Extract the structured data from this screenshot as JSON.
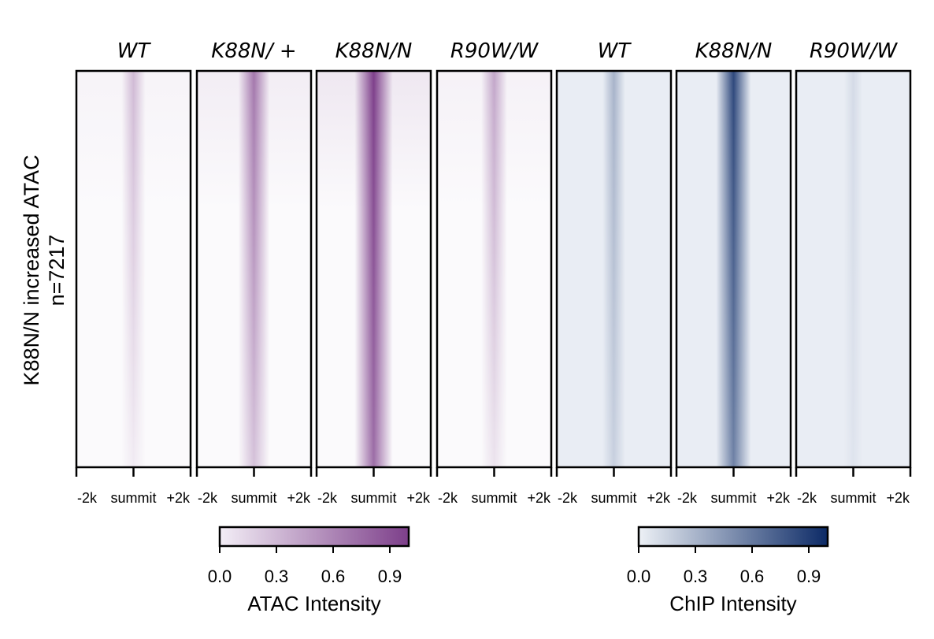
{
  "chart_data": {
    "type": "heatmap",
    "ylabel_line1": "K88N/N increased ATAC",
    "ylabel_line2": "n=7217",
    "n_regions": 7217,
    "x_tick_labels": [
      "-2k",
      "summit",
      "+2k"
    ],
    "panels": [
      {
        "title": "WT",
        "assay": "ATAC",
        "intensity_top": 0.35,
        "intensity_bottom": 0.08
      },
      {
        "title": "K88N/ +",
        "assay": "ATAC",
        "intensity_top": 0.7,
        "intensity_bottom": 0.3
      },
      {
        "title": "K88N/N",
        "assay": "ATAC",
        "intensity_top": 1.0,
        "intensity_bottom": 0.75
      },
      {
        "title": "R90W/W",
        "assay": "ATAC",
        "intensity_top": 0.45,
        "intensity_bottom": 0.12
      },
      {
        "title": "WT",
        "assay": "ChIP",
        "intensity_top": 0.3,
        "intensity_bottom": 0.15
      },
      {
        "title": "K88N/N",
        "assay": "ChIP",
        "intensity_top": 0.85,
        "intensity_bottom": 0.55
      },
      {
        "title": "R90W/W",
        "assay": "ChIP",
        "intensity_top": 0.1,
        "intensity_bottom": 0.05
      }
    ],
    "colorbars": [
      {
        "label": "ATAC Intensity",
        "ticks": [
          "0.0",
          "0.3",
          "0.6",
          "0.9"
        ],
        "range": [
          0,
          1
        ],
        "color_low": "#f3eef6",
        "color_high": "#7d3f8a"
      },
      {
        "label": "ChIP Intensity",
        "ticks": [
          "0.0",
          "0.3",
          "0.6",
          "0.9"
        ],
        "range": [
          0,
          1
        ],
        "color_low": "#edf1f6",
        "color_high": "#0c2a66"
      }
    ]
  }
}
